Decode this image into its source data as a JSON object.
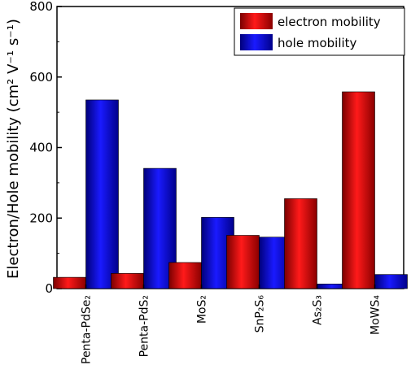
{
  "chart_data": {
    "type": "bar",
    "title": "",
    "ylabel": "Electron/Hole mobility (cm² V⁻¹ s⁻¹)",
    "xlabel": "",
    "ylim": [
      0,
      800
    ],
    "yticks": [
      0,
      200,
      400,
      600,
      800
    ],
    "categories": [
      "Penta-PdSe₂",
      "Penta-PdS₂",
      "MoS₂",
      "SnP₂S₆",
      "As₂S₃",
      "MoWS₄"
    ],
    "series": [
      {
        "name": "electron mobility",
        "color": "#e8141a",
        "values": [
          32,
          43,
          74,
          151,
          255,
          558
        ]
      },
      {
        "name": "hole mobility",
        "color": "#1a14e8",
        "values": [
          535,
          341,
          202,
          146,
          13,
          40
        ]
      }
    ],
    "grid": false,
    "legend_position": "top-right"
  }
}
